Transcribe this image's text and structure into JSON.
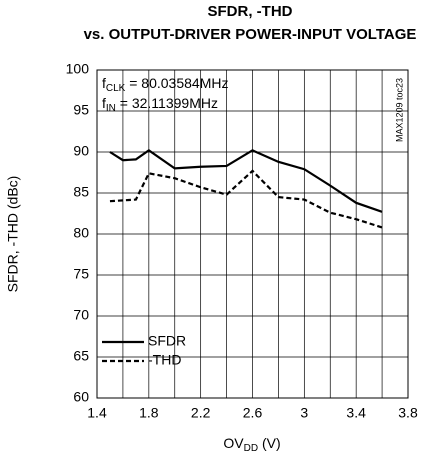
{
  "chart_data": {
    "type": "line",
    "title": "SFDR, -THD",
    "subtitle": "vs. OUTPUT-DRIVER POWER-INPUT VOLTAGE",
    "ylabel": "SFDR, -THD (dBc)",
    "xlabel": {
      "main": "OV",
      "sub": "DD",
      "rest": " (V)"
    },
    "annotations": [
      {
        "main": "f",
        "sub": "CLK",
        "rest": " = 80.03584MHz"
      },
      {
        "main": "f",
        "sub": "IN",
        "rest": " = 32.11399MHz"
      }
    ],
    "side_note": "MAX1209 toc23",
    "x": [
      1.5,
      1.6,
      1.7,
      1.8,
      2.0,
      2.2,
      2.4,
      2.6,
      2.8,
      3.0,
      3.2,
      3.4,
      3.6
    ],
    "series": [
      {
        "name": "SFDR",
        "color": "#000000",
        "dash": false,
        "values": [
          90.0,
          89.0,
          89.1,
          90.2,
          88.0,
          88.2,
          88.3,
          90.2,
          88.8,
          87.9,
          85.9,
          83.8,
          82.7
        ]
      },
      {
        "name": "-THD",
        "color": "#000000",
        "dash": true,
        "values": [
          84.0,
          84.1,
          84.2,
          87.4,
          86.8,
          85.7,
          84.8,
          87.7,
          84.5,
          84.2,
          82.6,
          81.8,
          80.8
        ]
      }
    ],
    "xlim": [
      1.4,
      3.8
    ],
    "xticks": [
      1.4,
      1.8,
      2.2,
      2.6,
      3.0,
      3.4,
      3.8
    ],
    "x_minor_grid": [
      1.6,
      2.0,
      2.4,
      2.8,
      3.2,
      3.6
    ],
    "ylim": [
      60,
      100
    ],
    "yticks": [
      60,
      65,
      70,
      75,
      80,
      85,
      90,
      95,
      100
    ],
    "grid": true,
    "legend": "lower-left"
  }
}
